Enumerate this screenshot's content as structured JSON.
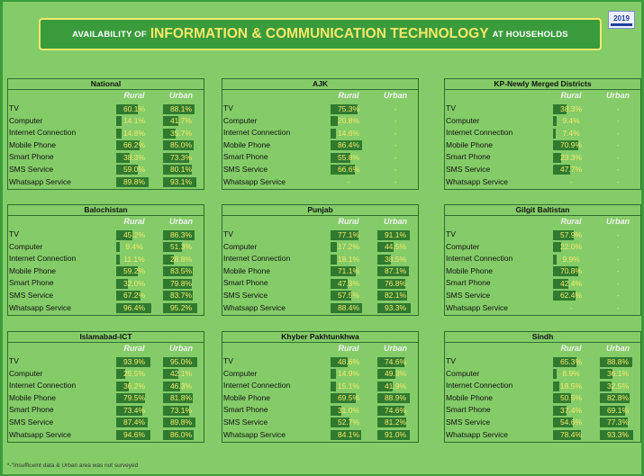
{
  "title": {
    "prefix": "AVAILABILITY OF",
    "main": "INFORMATION & COMMUNICATION TECHNOLOGY",
    "suffix": "AT HOUSEHOLDS"
  },
  "logo": {
    "year": "2019"
  },
  "footnote": "*-\"Insufficeint data & Urban area was not surveyed",
  "colors": {
    "background": "#84cc68",
    "bar": "#2f7a2f",
    "value_text": "#f6e86a",
    "title_bg": "#3a9b3c"
  },
  "chart_data": {
    "type": "table",
    "columns": [
      "Rural",
      "Urban"
    ],
    "rows": [
      "TV",
      "Computer",
      "Internet Connection",
      "Mobile Phone",
      "Smart Phone",
      "SMS Service",
      "Whatsapp Service"
    ],
    "panels": [
      {
        "name": "National",
        "rural": [
          "60.1%",
          "14.1%",
          "14.8%",
          "66.2%",
          "38.3%",
          "59.0%",
          "89.8%"
        ],
        "urban": [
          "88.1%",
          "41.7%",
          "35.7%",
          "85.0%",
          "73.3%",
          "80.1%",
          "93.1%"
        ]
      },
      {
        "name": "AJK",
        "rural": [
          "75.3%",
          "20.8%",
          "14.6%",
          "86.4%",
          "55.8%",
          "66.6%",
          "-"
        ],
        "urban": [
          "-",
          "-",
          "-",
          "-",
          "-",
          "-",
          "-"
        ]
      },
      {
        "name": "KP-Newly Merged Districts",
        "rural": [
          "38.3%",
          "9.4%",
          "7.4%",
          "70.9%",
          "23.3%",
          "47.7%",
          "-"
        ],
        "urban": [
          "-",
          "-",
          "-",
          "-",
          "-",
          "-",
          "-"
        ]
      },
      {
        "name": "Balochistan",
        "rural": [
          "45.2%",
          "9.4%",
          "11.1%",
          "59.2%",
          "32.0%",
          "67.2%",
          "96.4%"
        ],
        "urban": [
          "86.3%",
          "51.3%",
          "28.8%",
          "83.5%",
          "79.8%",
          "83.7%",
          "95.2%"
        ]
      },
      {
        "name": "Punjab",
        "rural": [
          "77.1%",
          "17.2%",
          "18.1%",
          "71.1%",
          "47.3%",
          "57.5%",
          "88.4%"
        ],
        "urban": [
          "91.1%",
          "44.5%",
          "38.5%",
          "87.1%",
          "76.8%",
          "82.1%",
          "93.3%"
        ]
      },
      {
        "name": "Gilgit Baltistan",
        "rural": [
          "57.9%",
          "22.0%",
          "9.9%",
          "70.8%",
          "42.4%",
          "62.4%",
          "-"
        ],
        "urban": [
          "-",
          "-",
          "-",
          "-",
          "-",
          "-",
          "-"
        ]
      },
      {
        "name": "Islamabad-ICT",
        "rural": [
          "93.9%",
          "25.5%",
          "36.2%",
          "79.5%",
          "73.4%",
          "87.4%",
          "94.6%"
        ],
        "urban": [
          "95.0%",
          "42.1%",
          "46.3%",
          "81.8%",
          "73.1%",
          "89.8%",
          "86.0%"
        ]
      },
      {
        "name": "Khyber Pakhtunkhwa",
        "rural": [
          "48.6%",
          "14.9%",
          "15.1%",
          "69.5%",
          "31.0%",
          "52.7%",
          "84.1%"
        ],
        "urban": [
          "74.6%",
          "49.3%",
          "41.9%",
          "88.9%",
          "74.6%",
          "81.2%",
          "91.0%"
        ]
      },
      {
        "name": "Sindh",
        "rural": [
          "65.3%",
          "8.9%",
          "18.5%",
          "50.5%",
          "37.4%",
          "54.6%",
          "78.4%"
        ],
        "urban": [
          "88.8%",
          "36.1%",
          "32.5%",
          "82.8%",
          "69.1%",
          "77.3%",
          "93.3%"
        ]
      }
    ]
  }
}
